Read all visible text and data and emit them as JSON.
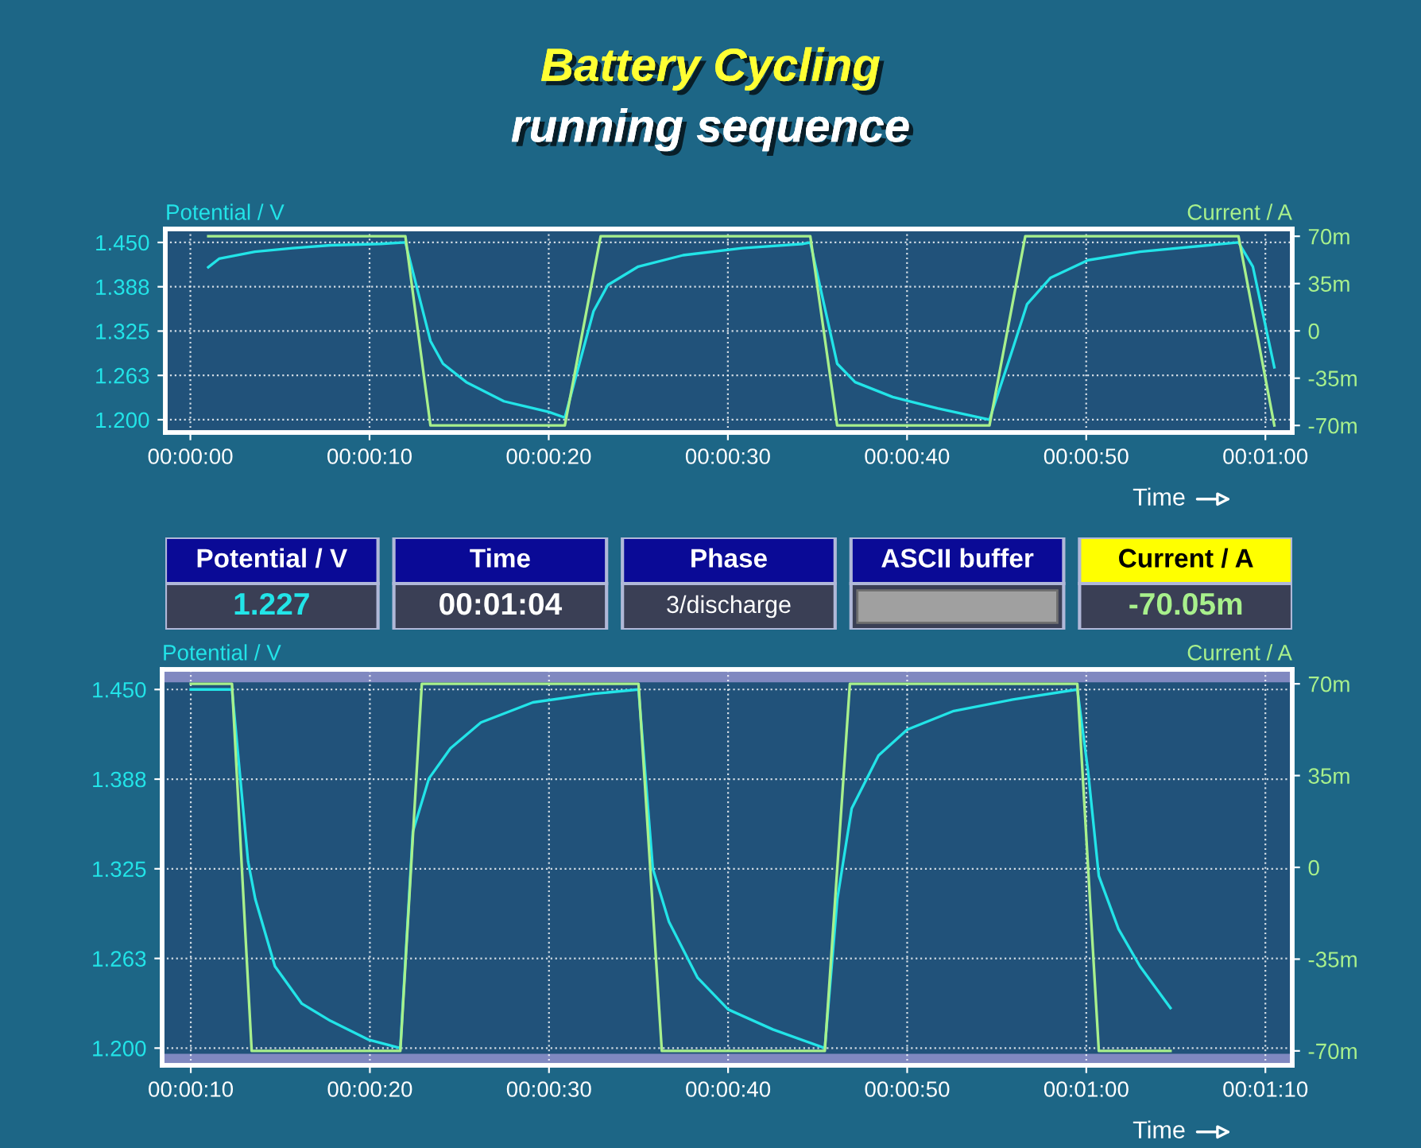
{
  "chart_data": [
    {
      "type": "line",
      "title": "Battery Cycling",
      "subtitle": "running sequence",
      "xlabel": "Time",
      "ylabel": "Potential / V",
      "y2label": "Current / A",
      "grid": true,
      "legend": false,
      "xlim": [
        -1.4,
        61.5
      ],
      "xticks": [
        {
          "value": 0,
          "label": "00:00:00"
        },
        {
          "value": 10,
          "label": "00:00:10"
        },
        {
          "value": 20,
          "label": "00:00:20"
        },
        {
          "value": 30,
          "label": "00:00:30"
        },
        {
          "value": 40,
          "label": "00:00:40"
        },
        {
          "value": 50,
          "label": "00:00:50"
        },
        {
          "value": 60,
          "label": "00:01:00"
        }
      ],
      "ylim": [
        1.182,
        1.469
      ],
      "yticks": [
        {
          "value": 1.2,
          "label": "1.200"
        },
        {
          "value": 1.2625,
          "label": "1.263"
        },
        {
          "value": 1.325,
          "label": "1.325"
        },
        {
          "value": 1.3875,
          "label": "1.388"
        },
        {
          "value": 1.45,
          "label": "1.450"
        }
      ],
      "y2lim": [
        -75.2,
        75.4
      ],
      "y2ticks": [
        {
          "value": -70,
          "label": "-70m"
        },
        {
          "value": -35,
          "label": "-35m"
        },
        {
          "value": 0,
          "label": "0"
        },
        {
          "value": 35,
          "label": "35m"
        },
        {
          "value": 70,
          "label": "70m"
        }
      ],
      "series": [
        {
          "color": "#a8f08c",
          "axis": "y2",
          "x": [
            1.0,
            12.0,
            13.4,
            20.9,
            22.9,
            34.6,
            36.1,
            44.6,
            46.6,
            58.5,
            60.5
          ],
          "values": [
            70,
            70,
            -70,
            -70,
            70,
            70,
            -70,
            -70,
            70,
            70,
            -70
          ]
        },
        {
          "color": "#22e4e8",
          "x": [
            1.0,
            1.6,
            3.6,
            5.7,
            7.8,
            10.6,
            12.0,
            13.4,
            14.1,
            15.4,
            17.5,
            20.0,
            20.9,
            22.5,
            23.3,
            25.0,
            27.5,
            30.8,
            34.2,
            34.6,
            36.1,
            37.1,
            39.2,
            41.7,
            44.6,
            45.9,
            46.7,
            48.0,
            50.1,
            53.0,
            56.8,
            58.5,
            59.3,
            60.5
          ],
          "values": [
            1.415,
            1.427,
            1.437,
            1.442,
            1.446,
            1.448,
            1.45,
            1.311,
            1.279,
            1.253,
            1.226,
            1.211,
            1.203,
            1.353,
            1.39,
            1.416,
            1.432,
            1.442,
            1.448,
            1.45,
            1.279,
            1.253,
            1.232,
            1.216,
            1.2,
            1.3,
            1.363,
            1.4,
            1.425,
            1.437,
            1.446,
            1.45,
            1.416,
            1.274
          ]
        }
      ]
    },
    {
      "type": "other",
      "categories": [
        "Potential / V",
        "Time",
        "Phase",
        "ASCII buffer",
        "Current / A"
      ],
      "value_labels": [
        "1.227",
        "00:01:04",
        "3/discharge",
        null,
        "-70.05m"
      ],
      "colors": [
        "#0a0a96",
        "#0a0a96",
        "#0a0a96",
        "#0a0a96",
        "#ffff00"
      ]
    },
    {
      "type": "line",
      "xlabel": "Time",
      "ylabel": "Potential / V",
      "y2label": "Current / A",
      "grid": true,
      "legend": false,
      "xlim": [
        8.4,
        71.5
      ],
      "xticks": [
        {
          "value": 10,
          "label": "00:00:10"
        },
        {
          "value": 20,
          "label": "00:00:20"
        },
        {
          "value": 30,
          "label": "00:00:30"
        },
        {
          "value": 40,
          "label": "00:00:40"
        },
        {
          "value": 50,
          "label": "00:00:50"
        },
        {
          "value": 60,
          "label": "00:01:00"
        },
        {
          "value": 70,
          "label": "00:01:10"
        }
      ],
      "ylim": [
        1.188,
        1.464
      ],
      "yticks": [
        {
          "value": 1.2,
          "label": "1.200"
        },
        {
          "value": 1.2625,
          "label": "1.263"
        },
        {
          "value": 1.325,
          "label": "1.325"
        },
        {
          "value": 1.3875,
          "label": "1.388"
        },
        {
          "value": 1.45,
          "label": "1.450"
        }
      ],
      "y2lim": [
        -75.5,
        75.5
      ],
      "y2ticks": [
        {
          "value": -70,
          "label": "-70m"
        },
        {
          "value": -35,
          "label": "-35m"
        },
        {
          "value": 0,
          "label": "0"
        },
        {
          "value": 35,
          "label": "35m"
        },
        {
          "value": 70,
          "label": "70m"
        }
      ],
      "bands": [
        {
          "axis": "y",
          "from": 1.455,
          "to": 1.464,
          "color": "#8088c0"
        },
        {
          "axis": "y",
          "from": 1.188,
          "to": 1.196,
          "color": "#8088c0"
        }
      ],
      "series": [
        {
          "color": "#a8f08c",
          "axis": "y2",
          "x": [
            10.0,
            12.3,
            13.4,
            21.7,
            22.9,
            35.0,
            36.3,
            45.4,
            46.8,
            59.5,
            60.7,
            64.7
          ],
          "values": [
            70,
            70,
            -70,
            -70,
            70,
            70,
            -70,
            -70,
            70,
            70,
            -70,
            -70
          ]
        },
        {
          "color": "#22e4e8",
          "x": [
            10.0,
            12.3,
            13.2,
            13.6,
            14.7,
            16.2,
            17.8,
            19.9,
            21.7,
            22.4,
            23.3,
            24.5,
            26.2,
            29.1,
            32.5,
            35.0,
            35.8,
            36.7,
            38.3,
            40.0,
            42.5,
            45.4,
            46.1,
            46.9,
            48.4,
            50.0,
            52.6,
            55.9,
            59.5,
            60.1,
            60.7,
            61.8,
            63.0,
            64.7
          ],
          "values": [
            1.45,
            1.45,
            1.33,
            1.304,
            1.257,
            1.231,
            1.219,
            1.206,
            1.2,
            1.351,
            1.388,
            1.409,
            1.427,
            1.441,
            1.447,
            1.45,
            1.325,
            1.288,
            1.249,
            1.227,
            1.213,
            1.2,
            1.304,
            1.367,
            1.404,
            1.422,
            1.435,
            1.443,
            1.45,
            1.393,
            1.32,
            1.283,
            1.257,
            1.228
          ]
        }
      ]
    }
  ]
}
